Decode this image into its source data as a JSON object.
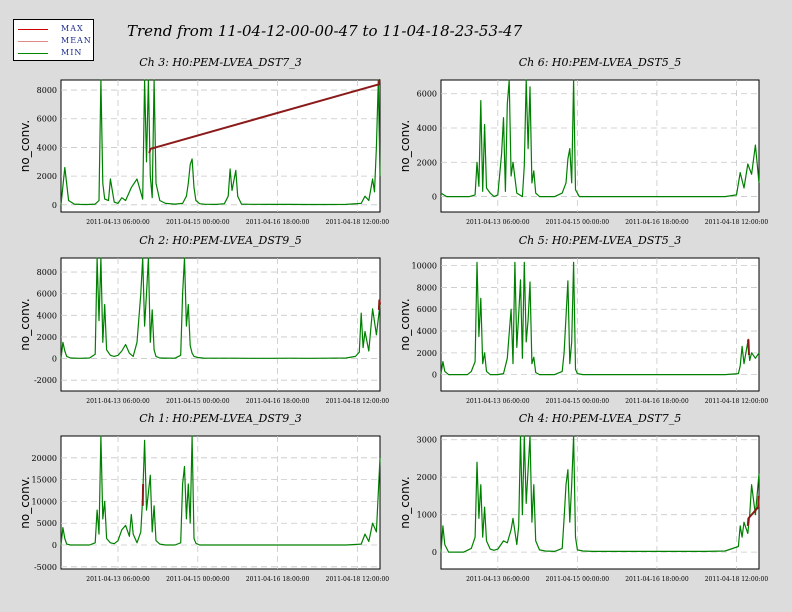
{
  "title": "Trend from 11-04-12-00-00-47 to 11-04-18-23-53-47",
  "legend": [
    {
      "label": "MAX",
      "color": "#cc0000"
    },
    {
      "label": "MEAN",
      "color": "#e08888"
    },
    {
      "label": "MIN",
      "color": "#008800"
    }
  ],
  "colors": {
    "max": "#8b1a1a",
    "min": "#008000",
    "grid": "#c8c8c8"
  },
  "chart_data": [
    {
      "type": "line",
      "title": "Ch 3: H0:PEM-LVEA_DST7_3",
      "ylabel": "no_conv.",
      "ylim": [
        -500,
        8700
      ],
      "yticks": [
        0,
        2000,
        4000,
        6000,
        8000
      ],
      "xticks": [
        "2011-04-13 06:00:00",
        "2011-04-15 00:00:00",
        "2011-04-16 18:00:00",
        "2011-04-18 12:00:00"
      ],
      "xlim": [
        0,
        167.9
      ],
      "xtick_pos": [
        30,
        72,
        114,
        156
      ],
      "series": [
        {
          "name": "MIN",
          "x": [
            0,
            2,
            4,
            7,
            10,
            14,
            18,
            20,
            21,
            22,
            23,
            25,
            26,
            28,
            30,
            32,
            34,
            37,
            40,
            43,
            44,
            45,
            46,
            47,
            48,
            49,
            50,
            52,
            55,
            60,
            64,
            66,
            67,
            68,
            69,
            70,
            71,
            73,
            76,
            82,
            86,
            88,
            89,
            90,
            92,
            93,
            95,
            100,
            110,
            120,
            130,
            140,
            150,
            158,
            160,
            162,
            164,
            165,
            166,
            167,
            167.9
          ],
          "y": [
            0,
            2600,
            300,
            50,
            30,
            20,
            50,
            300,
            8700,
            1500,
            400,
            300,
            1800,
            200,
            100,
            500,
            300,
            1200,
            1800,
            400,
            8700,
            3000,
            8700,
            2000,
            500,
            8700,
            1500,
            300,
            100,
            50,
            100,
            600,
            1500,
            2800,
            3200,
            1200,
            300,
            80,
            40,
            30,
            80,
            600,
            2500,
            1000,
            2400,
            600,
            50,
            40,
            30,
            30,
            20,
            20,
            30,
            100,
            600,
            300,
            1800,
            900,
            4000,
            8700,
            2000
          ]
        },
        {
          "name": "MAX",
          "x": [
            46.5,
            47,
            167.3,
            167.6,
            167.9
          ],
          "y": [
            3600,
            3900,
            8400,
            8700,
            8700
          ]
        }
      ]
    },
    {
      "type": "line",
      "title": "Ch 6: H0:PEM-LVEA_DST5_5",
      "ylabel": "no_conv.",
      "ylim": [
        -900,
        6800
      ],
      "yticks": [
        0,
        2000,
        4000,
        6000
      ],
      "xticks": [
        "2011-04-13 06:00:00",
        "2011-04-15 00:00:00",
        "2011-04-16 18:00:00",
        "2011-04-18 12:00:00"
      ],
      "xlim": [
        0,
        167.9
      ],
      "xtick_pos": [
        30,
        72,
        114,
        156
      ],
      "series": [
        {
          "name": "MIN",
          "x": [
            0,
            3,
            6,
            10,
            15,
            18,
            19,
            20,
            21,
            22,
            23,
            24,
            26,
            28,
            30,
            32,
            33,
            34,
            35,
            36,
            37,
            38,
            40,
            43,
            44,
            45,
            46,
            47,
            48,
            49,
            50,
            52,
            55,
            60,
            64,
            66,
            67,
            68,
            69,
            70,
            71,
            73,
            80,
            100,
            120,
            140,
            150,
            156,
            158,
            160,
            162,
            164,
            166,
            167.9
          ],
          "y": [
            200,
            0,
            0,
            0,
            0,
            100,
            2000,
            600,
            5600,
            300,
            4200,
            500,
            200,
            0,
            100,
            2500,
            4600,
            300,
            5400,
            6800,
            1200,
            2000,
            200,
            0,
            1800,
            6800,
            2800,
            6400,
            800,
            1500,
            200,
            0,
            0,
            0,
            200,
            800,
            2200,
            2800,
            800,
            6800,
            400,
            0,
            0,
            0,
            0,
            0,
            0,
            100,
            1400,
            500,
            1900,
            1300,
            3000,
            800
          ]
        },
        {
          "name": "MAX",
          "x": [],
          "y": []
        }
      ]
    },
    {
      "type": "line",
      "title": "Ch 2: H0:PEM-LVEA_DST9_5",
      "ylabel": "no_conv.",
      "ylim": [
        -3000,
        9300
      ],
      "yticks": [
        -2000,
        0,
        2000,
        4000,
        6000,
        8000
      ],
      "xticks": [
        "2011-04-13 06:00:00",
        "2011-04-15 00:00:00",
        "2011-04-16 18:00:00",
        "2011-04-18 12:00:00"
      ],
      "xlim": [
        0,
        167.9
      ],
      "xtick_pos": [
        30,
        72,
        114,
        156
      ],
      "series": [
        {
          "name": "MIN",
          "x": [
            0,
            1,
            2,
            3,
            5,
            10,
            15,
            18,
            19,
            20,
            21,
            22,
            23,
            24,
            26,
            28,
            30,
            32,
            34,
            36,
            38,
            40,
            42,
            43,
            44,
            45,
            46,
            47,
            48,
            49,
            50,
            52,
            55,
            60,
            63,
            64,
            65,
            66,
            67,
            68,
            69,
            70,
            72,
            75,
            80,
            90,
            100,
            110,
            120,
            130,
            140,
            150,
            155,
            157,
            158,
            159,
            160,
            162,
            164,
            166,
            167.9
          ],
          "y": [
            0,
            1500,
            700,
            200,
            50,
            20,
            50,
            400,
            9300,
            3500,
            9300,
            1500,
            5000,
            800,
            300,
            200,
            300,
            700,
            1300,
            500,
            200,
            1500,
            6000,
            9300,
            3000,
            6000,
            9300,
            1500,
            4500,
            800,
            200,
            50,
            40,
            30,
            300,
            6000,
            9300,
            3000,
            5000,
            1200,
            500,
            200,
            100,
            40,
            30,
            30,
            20,
            20,
            30,
            20,
            30,
            50,
            200,
            600,
            4200,
            1000,
            2500,
            700,
            4600,
            2200,
            5000
          ]
        },
        {
          "name": "MAX",
          "x": [
            167.3,
            167.6,
            167.9
          ],
          "y": [
            4500,
            5400,
            5000
          ]
        }
      ]
    },
    {
      "type": "line",
      "title": "Ch 5: H0:PEM-LVEA_DST5_3",
      "ylabel": "no_conv.",
      "ylim": [
        -1500,
        10700
      ],
      "yticks": [
        0,
        2000,
        4000,
        6000,
        8000,
        10000
      ],
      "xticks": [
        "2011-04-13 06:00:00",
        "2011-04-15 00:00:00",
        "2011-04-16 18:00:00",
        "2011-04-18 12:00:00"
      ],
      "xlim": [
        0,
        167.9
      ],
      "xtick_pos": [
        30,
        72,
        114,
        156
      ],
      "series": [
        {
          "name": "MIN",
          "x": [
            0,
            1,
            2,
            4,
            8,
            14,
            16,
            18,
            19,
            20,
            21,
            22,
            23,
            24,
            26,
            28,
            30,
            33,
            35,
            36,
            37,
            38,
            39,
            40,
            41,
            42,
            43,
            44,
            45,
            46,
            47,
            48,
            49,
            50,
            52,
            56,
            60,
            64,
            65,
            66,
            67,
            68,
            69,
            70,
            71,
            72,
            75,
            80,
            100,
            120,
            140,
            150,
            157,
            158,
            159,
            160,
            162,
            163,
            164,
            166,
            167.9
          ],
          "y": [
            100,
            1200,
            300,
            0,
            0,
            0,
            300,
            1200,
            10300,
            3500,
            7000,
            1000,
            2000,
            300,
            0,
            0,
            0,
            100,
            1500,
            3800,
            6000,
            1000,
            10300,
            2500,
            5500,
            8700,
            1500,
            10300,
            3000,
            5000,
            8500,
            1000,
            1600,
            200,
            0,
            0,
            0,
            300,
            2000,
            5300,
            8600,
            1000,
            3000,
            10300,
            500,
            100,
            0,
            0,
            0,
            0,
            0,
            0,
            100,
            800,
            2600,
            1000,
            3000,
            1300,
            2000,
            1500,
            2000
          ]
        },
        {
          "name": "MAX",
          "x": [
            162,
            162.3,
            162.6
          ],
          "y": [
            3000,
            3200,
            1800
          ]
        }
      ]
    },
    {
      "type": "line",
      "title": "Ch 1: H0:PEM-LVEA_DST9_3",
      "ylabel": "no_conv.",
      "ylim": [
        -5500,
        25000
      ],
      "yticks": [
        -5000,
        0,
        5000,
        10000,
        15000,
        20000
      ],
      "xticks": [
        "2011-04-13 06:00:00",
        "2011-04-15 00:00:00",
        "2011-04-16 18:00:00",
        "2011-04-18 12:00:00"
      ],
      "xlim": [
        0,
        167.9
      ],
      "xtick_pos": [
        30,
        72,
        114,
        156
      ],
      "series": [
        {
          "name": "MIN",
          "x": [
            0,
            1,
            2,
            3,
            5,
            10,
            15,
            18,
            19,
            20,
            21,
            22,
            23,
            24,
            26,
            28,
            30,
            32,
            34,
            36,
            37,
            38,
            40,
            42,
            43,
            44,
            45,
            46,
            47,
            48,
            49,
            50,
            52,
            55,
            60,
            63,
            64,
            65,
            66,
            67,
            68,
            69,
            70,
            71,
            73,
            78,
            85,
            100,
            110,
            120,
            130,
            140,
            150,
            158,
            160,
            162,
            164,
            166,
            167.9
          ],
          "y": [
            0,
            4000,
            1500,
            200,
            0,
            0,
            0,
            500,
            8000,
            2500,
            25000,
            6000,
            10000,
            1500,
            500,
            300,
            1000,
            3500,
            4500,
            2000,
            7000,
            2500,
            500,
            3000,
            11000,
            24000,
            8000,
            12000,
            16000,
            3000,
            9000,
            1000,
            200,
            0,
            0,
            500,
            14000,
            18000,
            6000,
            14000,
            5000,
            25000,
            1500,
            400,
            0,
            0,
            0,
            0,
            0,
            0,
            0,
            0,
            0,
            200,
            2500,
            800,
            5000,
            3000,
            20000
          ]
        },
        {
          "name": "MAX",
          "x": [
            43,
            43.2
          ],
          "y": [
            9000,
            14000
          ]
        }
      ]
    },
    {
      "type": "line",
      "title": "Ch 4: H0:PEM-LVEA_DST7_5",
      "ylabel": "no_conv.",
      "ylim": [
        -450,
        3100
      ],
      "yticks": [
        0,
        1000,
        2000,
        3000
      ],
      "xticks": [
        "2011-04-13 06:00:00",
        "2011-04-15 00:00:00",
        "2011-04-16 18:00:00",
        "2011-04-18 12:00:00"
      ],
      "xlim": [
        0,
        167.9
      ],
      "xtick_pos": [
        30,
        72,
        114,
        156
      ],
      "series": [
        {
          "name": "MIN",
          "x": [
            0,
            1,
            2,
            4,
            8,
            12,
            16,
            18,
            19,
            20,
            21,
            22,
            23,
            24,
            26,
            28,
            30,
            33,
            35,
            37,
            38,
            40,
            41,
            42,
            43,
            44,
            45,
            46,
            47,
            48,
            49,
            50,
            52,
            55,
            60,
            64,
            65,
            66,
            67,
            68,
            69,
            70,
            71,
            72,
            75,
            80,
            100,
            120,
            140,
            150,
            157,
            158,
            159,
            160,
            162,
            163,
            164,
            166,
            167.9
          ],
          "y": [
            0,
            700,
            200,
            0,
            0,
            0,
            100,
            400,
            2400,
            900,
            1800,
            400,
            1200,
            300,
            80,
            50,
            80,
            300,
            250,
            600,
            900,
            200,
            700,
            3100,
            1000,
            3100,
            1300,
            2200,
            3100,
            800,
            1800,
            300,
            60,
            30,
            20,
            100,
            900,
            1800,
            2200,
            800,
            1800,
            3100,
            400,
            60,
            30,
            20,
            20,
            20,
            20,
            30,
            150,
            700,
            400,
            800,
            500,
            1000,
            1800,
            1000,
            2100
          ]
        },
        {
          "name": "MAX",
          "x": [
            162,
            162.3,
            167.5,
            167.8
          ],
          "y": [
            700,
            900,
            1200,
            1500
          ]
        }
      ]
    }
  ]
}
